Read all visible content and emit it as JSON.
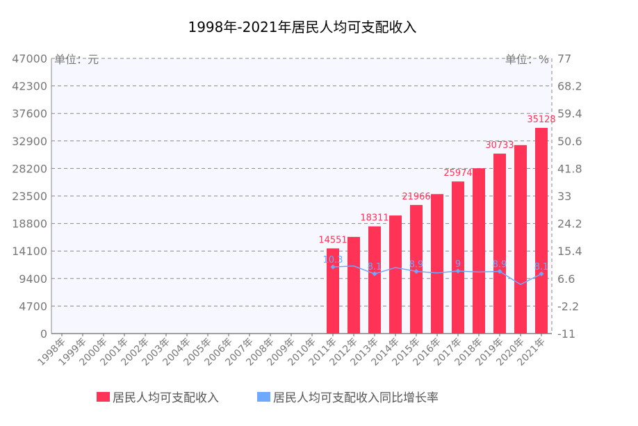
{
  "chart_data": {
    "type": "bar",
    "title": "1998年-2021年居民人均可支配收入",
    "left_unit": "单位：元",
    "right_unit": "单位：%",
    "categories": [
      "1998年",
      "1999年",
      "2000年",
      "2001年",
      "2002年",
      "2003年",
      "2004年",
      "2005年",
      "2006年",
      "2007年",
      "2008年",
      "2009年",
      "2010年",
      "2011年",
      "2012年",
      "2013年",
      "2014年",
      "2015年",
      "2016年",
      "2017年",
      "2018年",
      "2019年",
      "2020年",
      "2021年"
    ],
    "y_left": {
      "ylim": [
        0,
        47000
      ],
      "ticks": [
        "0",
        "4700",
        "9400",
        "14100",
        "18800",
        "23500",
        "28200",
        "32900",
        "37600",
        "42300",
        "47000"
      ]
    },
    "y_right": {
      "ylim": [
        -11,
        77
      ],
      "ticks": [
        "-11",
        "-2.2",
        "6.6",
        "15.4",
        "24.2",
        "33",
        "41.8",
        "50.6",
        "59.4",
        "68.2",
        "77"
      ]
    },
    "series": [
      {
        "name": "居民人均可支配收入",
        "kind": "bar",
        "axis": "left",
        "color": "#ff3355",
        "values": [
          null,
          null,
          null,
          null,
          null,
          null,
          null,
          null,
          null,
          null,
          null,
          null,
          null,
          14551,
          16510,
          18311,
          20167,
          21966,
          23821,
          25974,
          28228,
          30733,
          32189,
          35128
        ],
        "labels": [
          null,
          null,
          null,
          null,
          null,
          null,
          null,
          null,
          null,
          null,
          null,
          null,
          null,
          "14551",
          null,
          "18311",
          null,
          "21966",
          null,
          "25974",
          null,
          "30733",
          null,
          "35128"
        ]
      },
      {
        "name": "居民人均可支配收入同比增长率",
        "kind": "line",
        "axis": "right",
        "color": "#6fa8ff",
        "values": [
          null,
          null,
          null,
          null,
          null,
          null,
          null,
          null,
          null,
          null,
          null,
          null,
          null,
          10.3,
          10.6,
          8.1,
          10.1,
          8.9,
          8.4,
          9.0,
          8.7,
          8.9,
          4.7,
          8.1
        ],
        "labels": [
          null,
          null,
          null,
          null,
          null,
          null,
          null,
          null,
          null,
          null,
          null,
          null,
          null,
          "10.3",
          null,
          "8.1",
          null,
          "8.9",
          null,
          "9",
          null,
          "8.9",
          null,
          "8.1"
        ]
      }
    ],
    "grid": true,
    "legend_position": "bottom"
  }
}
